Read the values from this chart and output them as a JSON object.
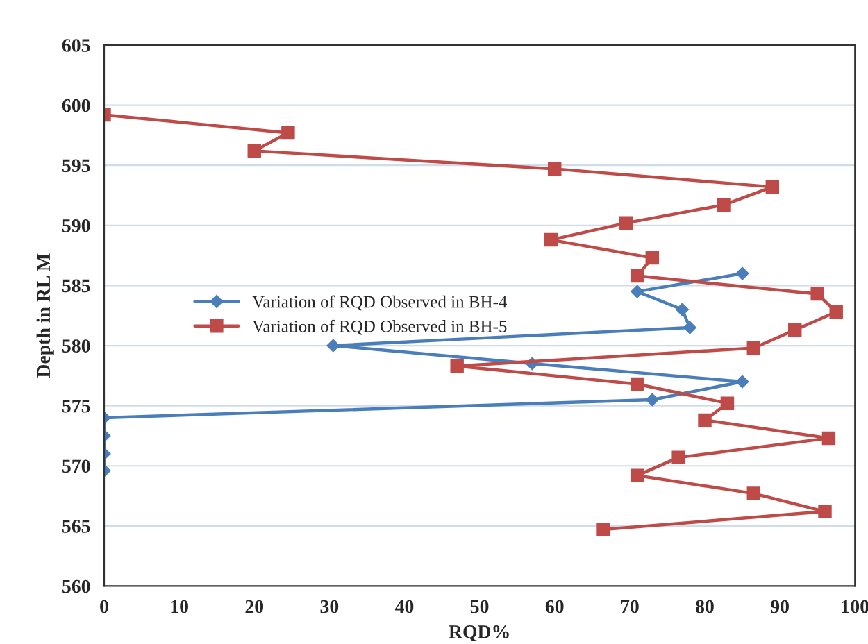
{
  "chart_data": {
    "type": "line",
    "xlabel": "RQD%",
    "ylabel": "Depth in RL M",
    "xlim": [
      0,
      100
    ],
    "xticks": [
      0,
      10,
      20,
      30,
      40,
      50,
      60,
      70,
      80,
      90,
      100
    ],
    "ylim": [
      560,
      605
    ],
    "yticks": [
      560,
      565,
      570,
      575,
      580,
      585,
      590,
      595,
      600,
      605
    ],
    "grid": "y",
    "legend": "center left",
    "series": [
      {
        "name": "Variation of RQD Observed in BH-4",
        "color": "#4a7ebb",
        "marker": "diamond",
        "x": [
          85,
          71,
          77,
          78,
          30.5,
          57,
          85,
          73,
          0,
          0,
          0,
          0
        ],
        "values": [
          586.0,
          584.5,
          583.0,
          581.5,
          580.0,
          578.5,
          577.0,
          575.5,
          574.0,
          572.5,
          571.0,
          569.6
        ]
      },
      {
        "name": "Variation of RQD Observed in BH-5",
        "color": "#be4b48",
        "marker": "square",
        "x": [
          0,
          24.5,
          20,
          60,
          89,
          82.5,
          69.5,
          59.5,
          73,
          71,
          95,
          97.5,
          92,
          86.5,
          47,
          71,
          83,
          80,
          96.5,
          76.5,
          71,
          86.5,
          96,
          66.5
        ],
        "values": [
          599.2,
          597.7,
          596.2,
          594.7,
          593.2,
          591.7,
          590.2,
          588.8,
          587.3,
          585.8,
          584.3,
          582.8,
          581.3,
          579.8,
          578.3,
          576.8,
          575.2,
          573.8,
          572.3,
          570.7,
          569.2,
          567.7,
          566.2,
          564.7
        ]
      }
    ]
  }
}
